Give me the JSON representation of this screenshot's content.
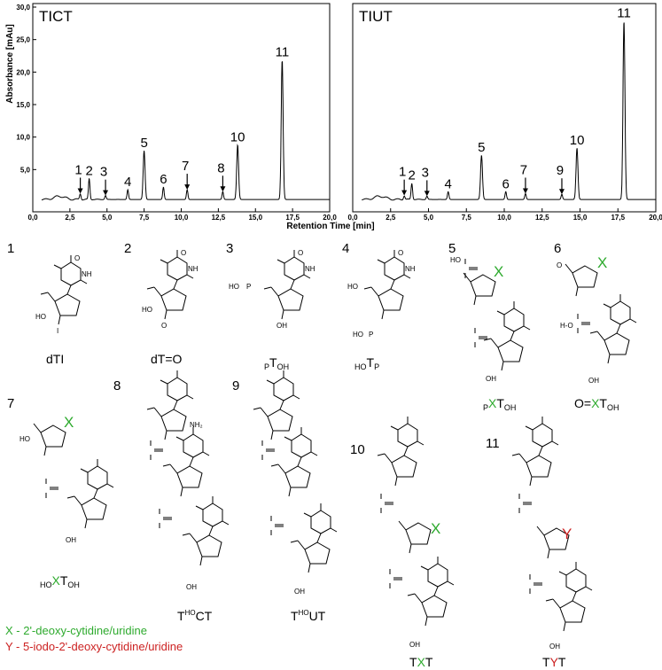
{
  "chart_data": [
    {
      "type": "line",
      "title": "TICT",
      "xlabel": "Retention Time [min]",
      "ylabel": "Absorbance [mAu]",
      "xlim": [
        0,
        20
      ],
      "ylim": [
        0,
        30
      ],
      "x_ticks": [
        "0,0",
        "2,5",
        "5,0",
        "7,5",
        "10,0",
        "12,5",
        "15,0",
        "17,5",
        "20,0"
      ],
      "y_ticks": [
        "5,0",
        "10,0",
        "15,0",
        "20,0",
        "25,0",
        "30,0"
      ],
      "peaks": [
        {
          "label": "1",
          "x": 3.2,
          "y": 0.9,
          "arrow": true
        },
        {
          "label": "2",
          "x": 3.8,
          "y": 3.2,
          "arrow": false
        },
        {
          "label": "3",
          "x": 4.9,
          "y": 0.6,
          "arrow": true
        },
        {
          "label": "4",
          "x": 6.4,
          "y": 1.5,
          "arrow": false
        },
        {
          "label": "5",
          "x": 7.5,
          "y": 7.5,
          "arrow": false
        },
        {
          "label": "6",
          "x": 8.8,
          "y": 1.9,
          "arrow": false
        },
        {
          "label": "7",
          "x": 10.4,
          "y": 1.5,
          "arrow": true
        },
        {
          "label": "8",
          "x": 12.8,
          "y": 1.2,
          "arrow": true
        },
        {
          "label": "10",
          "x": 13.8,
          "y": 8.4,
          "arrow": false
        },
        {
          "label": "11",
          "x": 16.8,
          "y": 21.5,
          "arrow": false
        }
      ]
    },
    {
      "type": "line",
      "title": "TIUT",
      "xlabel": "Retention Time [min]",
      "xlim": [
        0,
        20
      ],
      "ylim": [
        0,
        30
      ],
      "x_ticks": [
        "0,0",
        "2,5",
        "5,0",
        "7,5",
        "10,0",
        "12,5",
        "15,0",
        "17,5",
        "20,0"
      ],
      "peaks": [
        {
          "label": "1",
          "x": 3.4,
          "y": 0.6,
          "arrow": true
        },
        {
          "label": "2",
          "x": 3.9,
          "y": 2.5,
          "arrow": false
        },
        {
          "label": "3",
          "x": 4.9,
          "y": 0.5,
          "arrow": true
        },
        {
          "label": "4",
          "x": 6.3,
          "y": 1.2,
          "arrow": false
        },
        {
          "label": "5",
          "x": 8.5,
          "y": 6.8,
          "arrow": false
        },
        {
          "label": "6",
          "x": 10.1,
          "y": 1.2,
          "arrow": false
        },
        {
          "label": "7",
          "x": 11.4,
          "y": 0.9,
          "arrow": true
        },
        {
          "label": "9",
          "x": 13.8,
          "y": 0.8,
          "arrow": true
        },
        {
          "label": "10",
          "x": 14.8,
          "y": 7.9,
          "arrow": false
        },
        {
          "label": "11",
          "x": 17.9,
          "y": 27.5,
          "arrow": false
        }
      ]
    }
  ],
  "structures": [
    {
      "num": "1",
      "name": "dTI"
    },
    {
      "num": "2",
      "name": "dT=O"
    },
    {
      "num": "3",
      "name_main": "T",
      "name_pre": "P",
      "name_post": "OH"
    },
    {
      "num": "4",
      "name_main": "T",
      "name_pre": "HO",
      "name_post": "P"
    },
    {
      "num": "5",
      "name_main": "X",
      "name_pre": "P",
      "name_mid": "T",
      "name_post": "OH"
    },
    {
      "num": "6",
      "name_a": "O=",
      "name_b": "X",
      "name_c": "T",
      "name_post": "OH"
    },
    {
      "num": "7",
      "name_main": "X",
      "name_pre": "HO",
      "name_mid": "T",
      "name_post": "OH"
    },
    {
      "num": "8",
      "name_a": "T",
      "name_sup": "HO",
      "name_b": "CT"
    },
    {
      "num": "9",
      "name_a": "T",
      "name_sup": "HO",
      "name_b": "UT"
    },
    {
      "num": "10",
      "name_a": "T",
      "name_b": "X",
      "name_c": "T"
    },
    {
      "num": "11",
      "name_a": "T",
      "name_b": "Y",
      "name_c": "T"
    }
  ],
  "atoms": {
    "nh": "NH",
    "o": "O",
    "n": "N",
    "ho": "HO",
    "oh": "OH",
    "p": "P",
    "i": "I",
    "nh2": "NH₂",
    "hp": "H-O"
  },
  "legend": {
    "x": "X - 2'-deoxy-cytidine/uridine",
    "y": "Y - 5-iodo-2'-deoxy-cytidine/uridine"
  },
  "colors": {
    "x_green": "#2eaa2e",
    "y_red": "#cc2222"
  }
}
